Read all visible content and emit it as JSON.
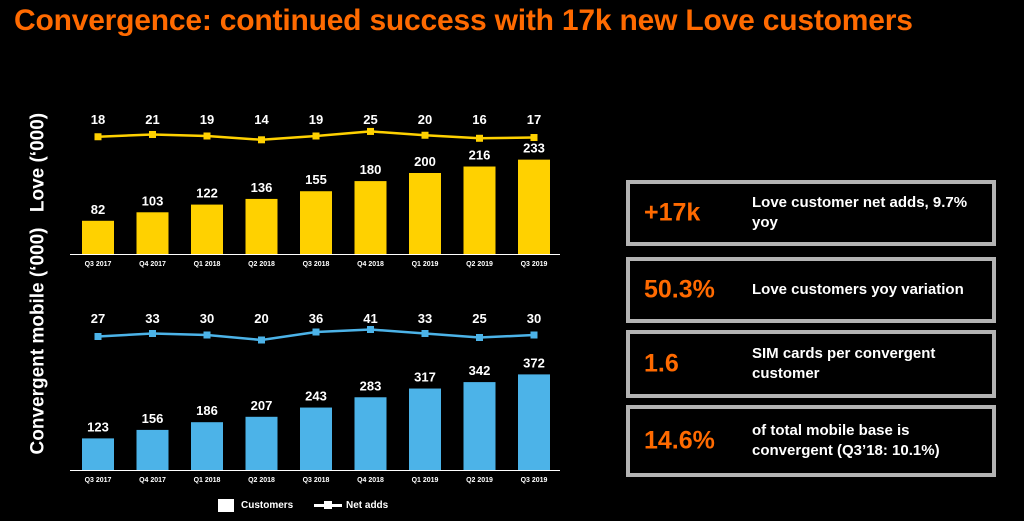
{
  "title": "Convergence: continued success with 17k new Love customers",
  "colors": {
    "accent": "#ff6a00",
    "love": "#ffd100",
    "convergent": "#4cb3e8",
    "kpi_border": "#b3b3b3"
  },
  "chart_data": [
    {
      "type": "bar",
      "ylabel": "Love (‘000)",
      "categories": [
        "Q3 2017",
        "Q4 2017",
        "Q1 2018",
        "Q2 2018",
        "Q3 2018",
        "Q4 2018",
        "Q1 2019",
        "Q2 2019",
        "Q3 2019"
      ],
      "series": [
        {
          "name": "Customers",
          "values": [
            82,
            103,
            122,
            136,
            155,
            180,
            200,
            216,
            233
          ]
        },
        {
          "name": "Net adds",
          "values": [
            18,
            21,
            19,
            14,
            19,
            25,
            20,
            16,
            17
          ]
        }
      ]
    },
    {
      "type": "bar",
      "ylabel": "Convergent mobile (‘000)",
      "categories": [
        "Q3 2017",
        "Q4 2017",
        "Q1 2018",
        "Q2 2018",
        "Q3 2018",
        "Q4 2018",
        "Q1 2019",
        "Q2 2019",
        "Q3 2019"
      ],
      "series": [
        {
          "name": "Customers",
          "values": [
            123,
            156,
            186,
            207,
            243,
            283,
            317,
            342,
            372
          ]
        },
        {
          "name": "Net adds",
          "values": [
            27,
            33,
            30,
            20,
            36,
            41,
            33,
            25,
            30
          ]
        }
      ]
    }
  ],
  "legend": {
    "customers": "Customers",
    "net_adds": "Net adds"
  },
  "kpis": [
    {
      "value": "+17k",
      "desc": "Love customer net adds, 9.7% yoy"
    },
    {
      "value": "50.3%",
      "desc": "Love customers yoy variation"
    },
    {
      "value": "1.6",
      "desc": "SIM cards per convergent customer"
    },
    {
      "value": "14.6%",
      "desc": "of total mobile base is convergent (Q3’18: 10.1%)"
    }
  ]
}
